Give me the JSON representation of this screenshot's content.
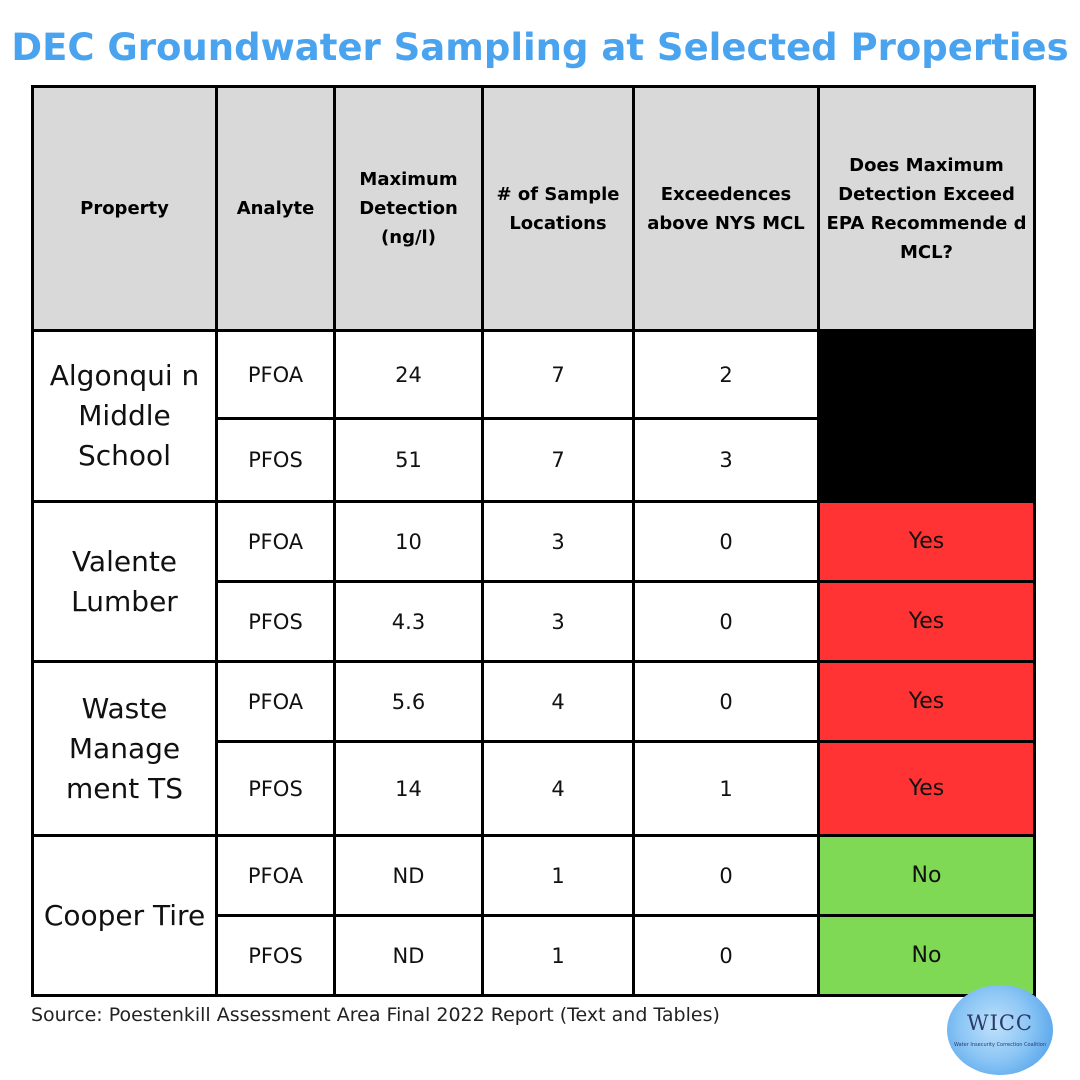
{
  "title": "DEC Groundwater Sampling at Selected Properties",
  "table": {
    "headers": {
      "property": "Property",
      "analyte": "Analyte",
      "max_detection": "Maximum Detection (ng/l)",
      "sample_locations": "# of Sample Locations",
      "exceedences": "Exceedences above NYS MCL",
      "exceed_epa": "Does Maximum Detection Exceed EPA Recommende d MCL?"
    },
    "groups": [
      {
        "property": "Algonqui n Middle School",
        "rows": [
          {
            "analyte": "PFOA",
            "max_detection": "24",
            "sample_locations": "7",
            "exceedences": "2",
            "exceed_epa": ""
          },
          {
            "analyte": "PFOS",
            "max_detection": "51",
            "sample_locations": "7",
            "exceedences": "3",
            "exceed_epa": ""
          }
        ],
        "epa_color": "#000000"
      },
      {
        "property": "Valente Lumber",
        "rows": [
          {
            "analyte": "PFOA",
            "max_detection": "10",
            "sample_locations": "3",
            "exceedences": "0",
            "exceed_epa": "Yes"
          },
          {
            "analyte": "PFOS",
            "max_detection": "4.3",
            "sample_locations": "3",
            "exceedences": "0",
            "exceed_epa": "Yes"
          }
        ],
        "epa_color": "#ff3333"
      },
      {
        "property": "Waste Manage ment TS",
        "rows": [
          {
            "analyte": "PFOA",
            "max_detection": "5.6",
            "sample_locations": "4",
            "exceedences": "0",
            "exceed_epa": "Yes"
          },
          {
            "analyte": "PFOS",
            "max_detection": "14",
            "sample_locations": "4",
            "exceedences": "1",
            "exceed_epa": "Yes"
          }
        ],
        "epa_color": "#ff3333"
      },
      {
        "property": "Cooper Tire",
        "rows": [
          {
            "analyte": "PFOA",
            "max_detection": "ND",
            "sample_locations": "1",
            "exceedences": "0",
            "exceed_epa": "No"
          },
          {
            "analyte": "PFOS",
            "max_detection": "ND",
            "sample_locations": "1",
            "exceedences": "0",
            "exceed_epa": "No"
          }
        ],
        "epa_color": "#80d955"
      }
    ]
  },
  "source": "Source: Poestenkill Assessment Area Final 2022 Report (Text and Tables)",
  "logo": {
    "text": "WICC",
    "subtext": "Water Insecurity Correction Coalition"
  },
  "colors": {
    "title": "#4aa3ef",
    "header_bg": "#d9d9d9",
    "yes_red": "#ff3333",
    "no_green": "#80d955"
  }
}
